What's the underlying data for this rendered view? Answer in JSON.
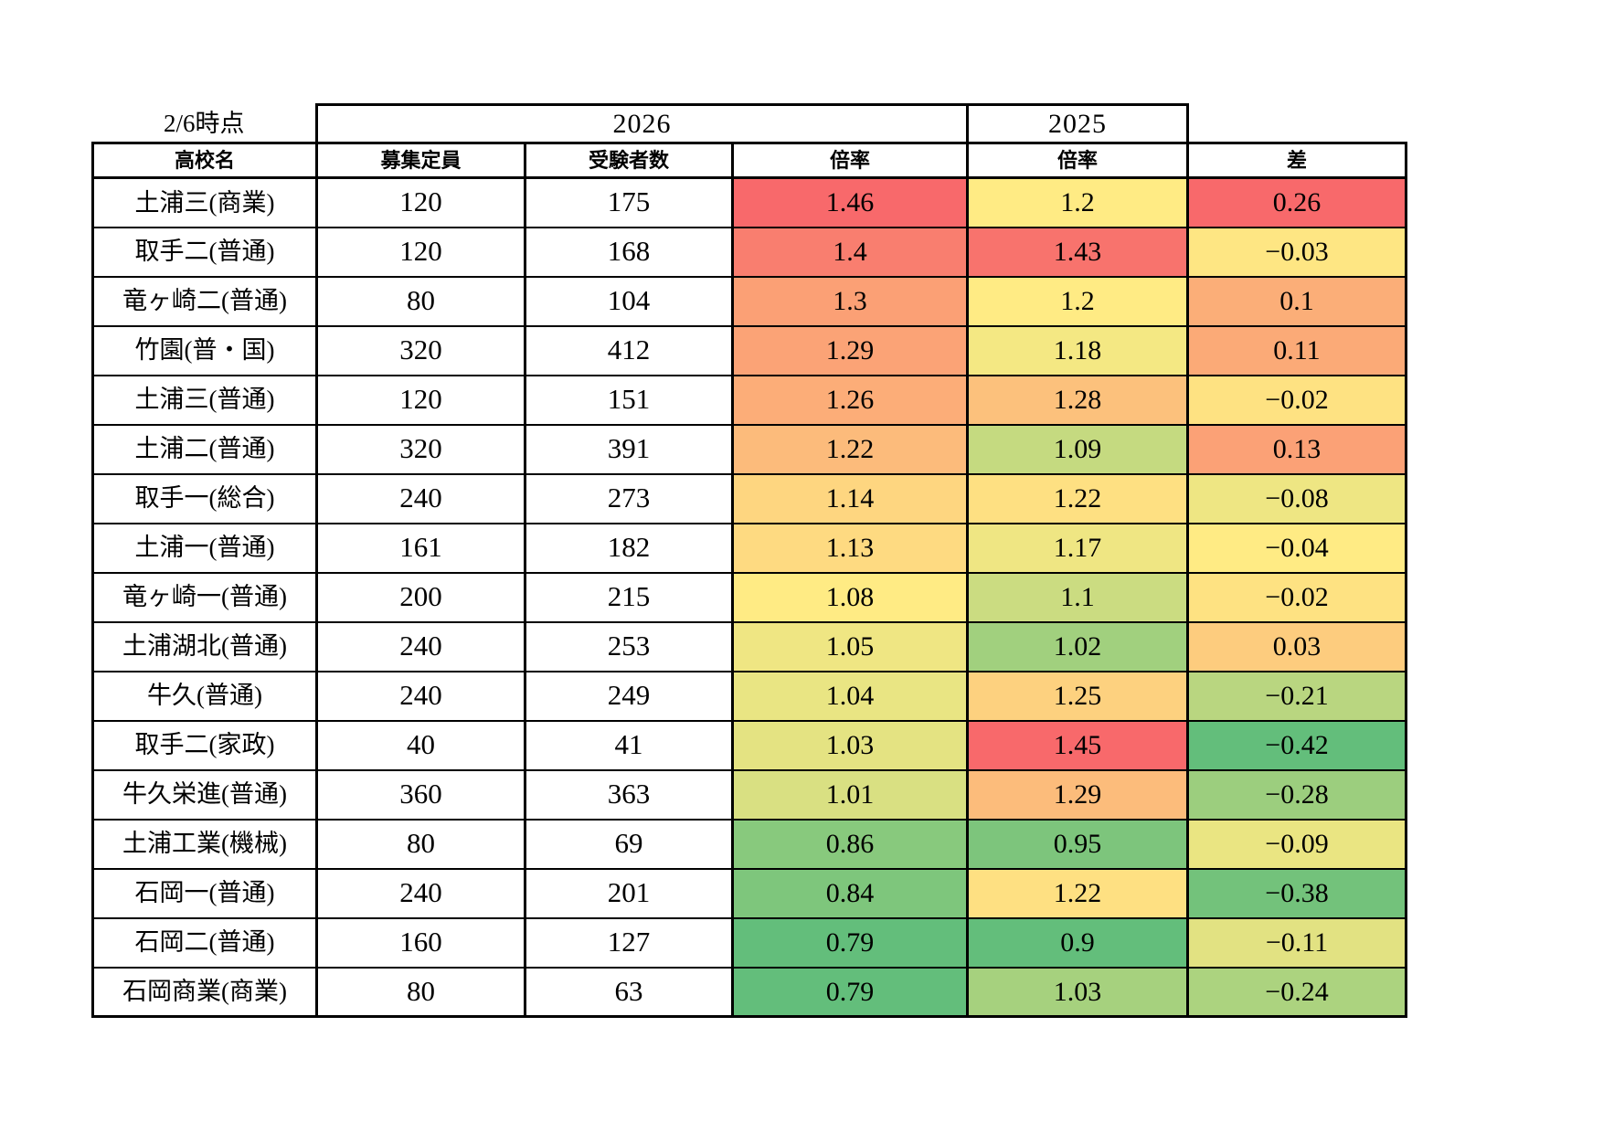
{
  "meta": {
    "as_of_label": "2/6時点"
  },
  "palette": {
    "scale_max_red": "#F8696B",
    "scale_mid_yellow": "#FFEB84",
    "scale_min_green": "#63BE7B",
    "border": "#000000",
    "background": "#FFFFFF"
  },
  "table": {
    "group_headers": [
      {
        "label": "2026"
      },
      {
        "label": "2025"
      }
    ],
    "columns": [
      "高校名",
      "募集定員",
      "受験者数",
      "倍率",
      "倍率",
      "差"
    ],
    "rows": [
      {
        "school": "土浦三(商業)",
        "capacity": "120",
        "applicants": "175",
        "r26": {
          "text": "1.46",
          "bg": "#F8696B"
        },
        "r25": {
          "text": "1.2",
          "bg": "#FFEB84"
        },
        "diff": {
          "text": "0.26",
          "bg": "#F8696B"
        }
      },
      {
        "school": "取手二(普通)",
        "capacity": "120",
        "applicants": "168",
        "r26": {
          "text": "1.4",
          "bg": "#F97E6F"
        },
        "r25": {
          "text": "1.43",
          "bg": "#F8736D"
        },
        "diff": {
          "text": "−0.03",
          "bg": "#FEE683"
        }
      },
      {
        "school": "竜ヶ崎二(普通)",
        "capacity": "80",
        "applicants": "104",
        "r26": {
          "text": "1.3",
          "bg": "#FBA075"
        },
        "r25": {
          "text": "1.2",
          "bg": "#FFEB84"
        },
        "diff": {
          "text": "0.1",
          "bg": "#FBAE78"
        }
      },
      {
        "school": "竹園(普・国)",
        "capacity": "320",
        "applicants": "412",
        "r26": {
          "text": "1.29",
          "bg": "#FBA376"
        },
        "r25": {
          "text": "1.18",
          "bg": "#F4E883"
        },
        "diff": {
          "text": "0.11",
          "bg": "#FBAA77"
        }
      },
      {
        "school": "土浦三(普通)",
        "capacity": "120",
        "applicants": "151",
        "r26": {
          "text": "1.26",
          "bg": "#FCAD78"
        },
        "r25": {
          "text": "1.28",
          "bg": "#FCC17C"
        },
        "diff": {
          "text": "−0.02",
          "bg": "#FEE282"
        }
      },
      {
        "school": "土浦二(普通)",
        "capacity": "320",
        "applicants": "391",
        "r26": {
          "text": "1.22",
          "bg": "#FCBB7B"
        },
        "r25": {
          "text": "1.09",
          "bg": "#C5DA80"
        },
        "diff": {
          "text": "0.13",
          "bg": "#FBA176"
        }
      },
      {
        "school": "取手一(総合)",
        "capacity": "240",
        "applicants": "273",
        "r26": {
          "text": "1.14",
          "bg": "#FED680"
        },
        "r25": {
          "text": "1.22",
          "bg": "#FEE082"
        },
        "diff": {
          "text": "−0.08",
          "bg": "#EEE683"
        }
      },
      {
        "school": "土浦一(普通)",
        "capacity": "161",
        "applicants": "182",
        "r26": {
          "text": "1.13",
          "bg": "#FEDA81"
        },
        "r25": {
          "text": "1.17",
          "bg": "#EFE683"
        },
        "diff": {
          "text": "−0.04",
          "bg": "#FFEB84"
        }
      },
      {
        "school": "竜ヶ崎一(普通)",
        "capacity": "200",
        "applicants": "215",
        "r26": {
          "text": "1.08",
          "bg": "#FFEB84"
        },
        "r25": {
          "text": "1.1",
          "bg": "#CBDC81"
        },
        "diff": {
          "text": "−0.02",
          "bg": "#FEE282"
        }
      },
      {
        "school": "土浦湖北(普通)",
        "capacity": "240",
        "applicants": "253",
        "r26": {
          "text": "1.05",
          "bg": "#EFE683"
        },
        "r25": {
          "text": "1.02",
          "bg": "#A1D07E"
        },
        "diff": {
          "text": "0.03",
          "bg": "#FDCC7E"
        }
      },
      {
        "school": "牛久(普通)",
        "capacity": "240",
        "applicants": "249",
        "r26": {
          "text": "1.04",
          "bg": "#E9E583"
        },
        "r25": {
          "text": "1.25",
          "bg": "#FDD17F"
        },
        "diff": {
          "text": "−0.21",
          "bg": "#B9D680"
        }
      },
      {
        "school": "取手二(家政)",
        "capacity": "40",
        "applicants": "41",
        "r26": {
          "text": "1.03",
          "bg": "#E4E382"
        },
        "r25": {
          "text": "1.45",
          "bg": "#F8696B"
        },
        "diff": {
          "text": "−0.42",
          "bg": "#63BE7B"
        }
      },
      {
        "school": "牛久栄進(普通)",
        "capacity": "360",
        "applicants": "363",
        "r26": {
          "text": "1.01",
          "bg": "#D9E082"
        },
        "r25": {
          "text": "1.29",
          "bg": "#FCBC7B"
        },
        "diff": {
          "text": "−0.28",
          "bg": "#9CCE7E"
        }
      },
      {
        "school": "土浦工業(機械)",
        "capacity": "80",
        "applicants": "69",
        "r26": {
          "text": "0.86",
          "bg": "#88C97D"
        },
        "r25": {
          "text": "0.95",
          "bg": "#7DC57C"
        },
        "diff": {
          "text": "−0.09",
          "bg": "#EAE582"
        }
      },
      {
        "school": "石岡一(普通)",
        "capacity": "240",
        "applicants": "201",
        "r26": {
          "text": "0.84",
          "bg": "#7EC67C"
        },
        "r25": {
          "text": "1.22",
          "bg": "#FEE082"
        },
        "diff": {
          "text": "−0.38",
          "bg": "#73C27B"
        }
      },
      {
        "school": "石岡二(普通)",
        "capacity": "160",
        "applicants": "127",
        "r26": {
          "text": "0.79",
          "bg": "#63BE7B"
        },
        "r25": {
          "text": "0.9",
          "bg": "#63BE7B"
        },
        "diff": {
          "text": "−0.11",
          "bg": "#E2E282"
        }
      },
      {
        "school": "石岡商業(商業)",
        "capacity": "80",
        "applicants": "63",
        "r26": {
          "text": "0.79",
          "bg": "#63BE7B"
        },
        "r25": {
          "text": "1.03",
          "bg": "#A6D17E"
        },
        "diff": {
          "text": "−0.24",
          "bg": "#ACD37F"
        }
      }
    ]
  },
  "chart_data": {
    "type": "table",
    "as_of": "2/6時点",
    "columns": [
      "高校名",
      "2026 募集定員",
      "2026 受験者数",
      "2026 倍率",
      "2025 倍率",
      "差"
    ],
    "rows": [
      [
        "土浦三(商業)",
        120,
        175,
        1.46,
        1.2,
        0.26
      ],
      [
        "取手二(普通)",
        120,
        168,
        1.4,
        1.43,
        -0.03
      ],
      [
        "竜ヶ崎二(普通)",
        80,
        104,
        1.3,
        1.2,
        0.1
      ],
      [
        "竹園(普・国)",
        320,
        412,
        1.29,
        1.18,
        0.11
      ],
      [
        "土浦三(普通)",
        120,
        151,
        1.26,
        1.28,
        -0.02
      ],
      [
        "土浦二(普通)",
        320,
        391,
        1.22,
        1.09,
        0.13
      ],
      [
        "取手一(総合)",
        240,
        273,
        1.14,
        1.22,
        -0.08
      ],
      [
        "土浦一(普通)",
        161,
        182,
        1.13,
        1.17,
        -0.04
      ],
      [
        "竜ヶ崎一(普通)",
        200,
        215,
        1.08,
        1.1,
        -0.02
      ],
      [
        "土浦湖北(普通)",
        240,
        253,
        1.05,
        1.02,
        0.03
      ],
      [
        "牛久(普通)",
        240,
        249,
        1.04,
        1.25,
        -0.21
      ],
      [
        "取手二(家政)",
        40,
        41,
        1.03,
        1.45,
        -0.42
      ],
      [
        "牛久栄進(普通)",
        360,
        363,
        1.01,
        1.29,
        -0.28
      ],
      [
        "土浦工業(機械)",
        80,
        69,
        0.86,
        0.95,
        -0.09
      ],
      [
        "石岡一(普通)",
        240,
        201,
        0.84,
        1.22,
        -0.38
      ],
      [
        "石岡二(普通)",
        160,
        127,
        0.79,
        0.9,
        -0.11
      ],
      [
        "石岡商業(商業)",
        80,
        63,
        0.79,
        1.03,
        -0.24
      ]
    ],
    "color_scale": {
      "type": "red-yellow-green",
      "max_color": "#F8696B",
      "mid_color": "#FFEB84",
      "min_color": "#63BE7B",
      "applies_to": [
        "2026 倍率",
        "2025 倍率",
        "差"
      ]
    },
    "grid": true,
    "legend_position": "none"
  }
}
